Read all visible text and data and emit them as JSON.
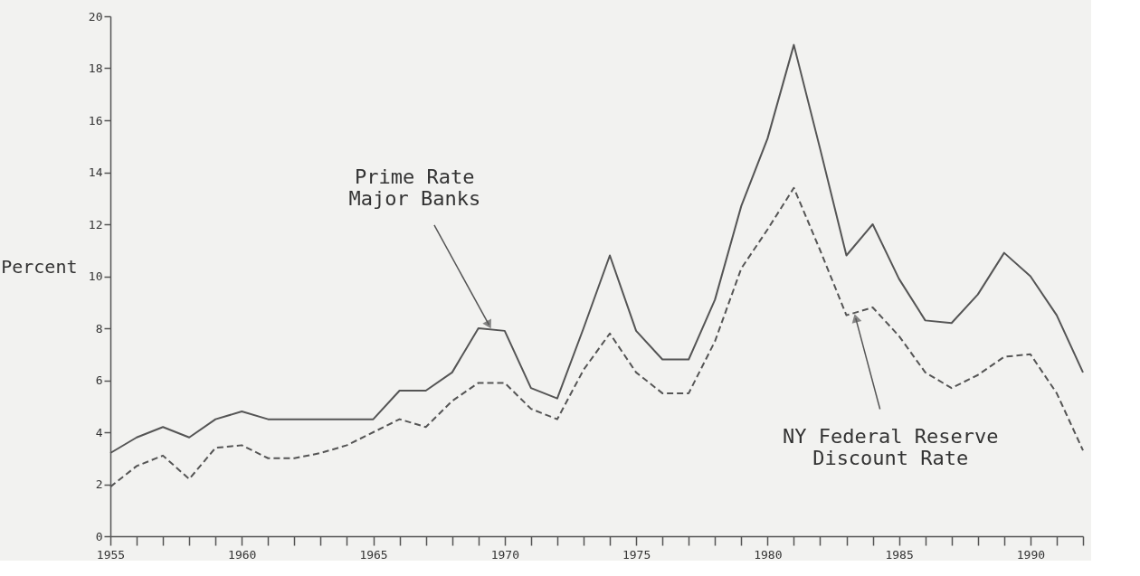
{
  "chart_data": {
    "type": "line",
    "ylabel": "Percent",
    "x": [
      1955,
      1956,
      1957,
      1958,
      1959,
      1960,
      1961,
      1962,
      1963,
      1964,
      1965,
      1966,
      1967,
      1968,
      1969,
      1970,
      1971,
      1972,
      1973,
      1974,
      1975,
      1976,
      1977,
      1978,
      1979,
      1980,
      1981,
      1982,
      1983,
      1984,
      1985,
      1986,
      1987,
      1988,
      1989,
      1990,
      1991,
      1992
    ],
    "series": [
      {
        "color": "#555555",
        "line_style": "solid",
        "values": [
          3.2,
          3.8,
          4.2,
          3.8,
          4.5,
          4.8,
          4.5,
          4.5,
          4.5,
          4.5,
          4.5,
          5.6,
          5.6,
          6.3,
          8.0,
          7.9,
          5.7,
          5.3,
          8.0,
          10.8,
          7.9,
          6.8,
          6.8,
          9.1,
          12.7,
          15.3,
          18.9,
          14.9,
          10.8,
          12.0,
          9.9,
          8.3,
          8.2,
          9.3,
          10.9,
          10.0,
          8.5,
          6.3
        ]
      },
      {
        "color": "#555555",
        "line_style": "dashed",
        "values": [
          1.9,
          2.7,
          3.1,
          2.2,
          3.4,
          3.5,
          3.0,
          3.0,
          3.2,
          3.5,
          4.0,
          4.5,
          4.2,
          5.2,
          5.9,
          5.9,
          4.9,
          4.5,
          6.4,
          7.8,
          6.3,
          5.5,
          5.5,
          7.5,
          10.3,
          11.8,
          13.4,
          11.0,
          8.5,
          8.8,
          7.7,
          6.3,
          5.7,
          6.2,
          6.9,
          7.0,
          5.5,
          3.3
        ]
      }
    ],
    "annotations": [
      {
        "text": "Prime Rate\nMajor Banks",
        "x": 1969.5,
        "y": 7.95
      },
      {
        "text": "NY Federal Reserve\nDiscount Rate",
        "x": 1983.3,
        "y": 8.59
      }
    ],
    "xlim": [
      1955,
      1992
    ],
    "xticks": [
      1955,
      {
        "value": 1956,
        "label": null
      },
      {
        "value": 1957,
        "label": null
      },
      {
        "value": 1958,
        "label": null
      },
      {
        "value": 1959,
        "label": null
      },
      1960,
      {
        "value": 1961,
        "label": null
      },
      {
        "value": 1962,
        "label": null
      },
      {
        "value": 1963,
        "label": null
      },
      {
        "value": 1964,
        "label": null
      },
      1965,
      {
        "value": 1966,
        "label": null
      },
      {
        "value": 1967,
        "label": null
      },
      {
        "value": 1968,
        "label": null
      },
      {
        "value": 1969,
        "label": null
      },
      1970,
      {
        "value": 1971,
        "label": null
      },
      {
        "value": 1972,
        "label": null
      },
      {
        "value": 1973,
        "label": null
      },
      {
        "value": 1974,
        "label": null
      },
      1975,
      {
        "value": 1976,
        "label": null
      },
      {
        "value": 1977,
        "label": null
      },
      {
        "value": 1978,
        "label": null
      },
      {
        "value": 1979,
        "label": null
      },
      1980,
      {
        "value": 1981,
        "label": null
      },
      {
        "value": 1982,
        "label": null
      },
      {
        "value": 1983,
        "label": null
      },
      {
        "value": 1984,
        "label": null
      },
      1985,
      {
        "value": 1986,
        "label": null
      },
      {
        "value": 1987,
        "label": null
      },
      {
        "value": 1988,
        "label": null
      },
      {
        "value": 1989,
        "label": null
      },
      1990,
      {
        "value": 1991,
        "label": null
      },
      {
        "value": 1992,
        "label": null
      }
    ],
    "ylim": [
      0,
      20
    ],
    "yticks": [
      0,
      2,
      4,
      6,
      8,
      10,
      12,
      14,
      16,
      18,
      20
    ],
    "grid": false
  }
}
